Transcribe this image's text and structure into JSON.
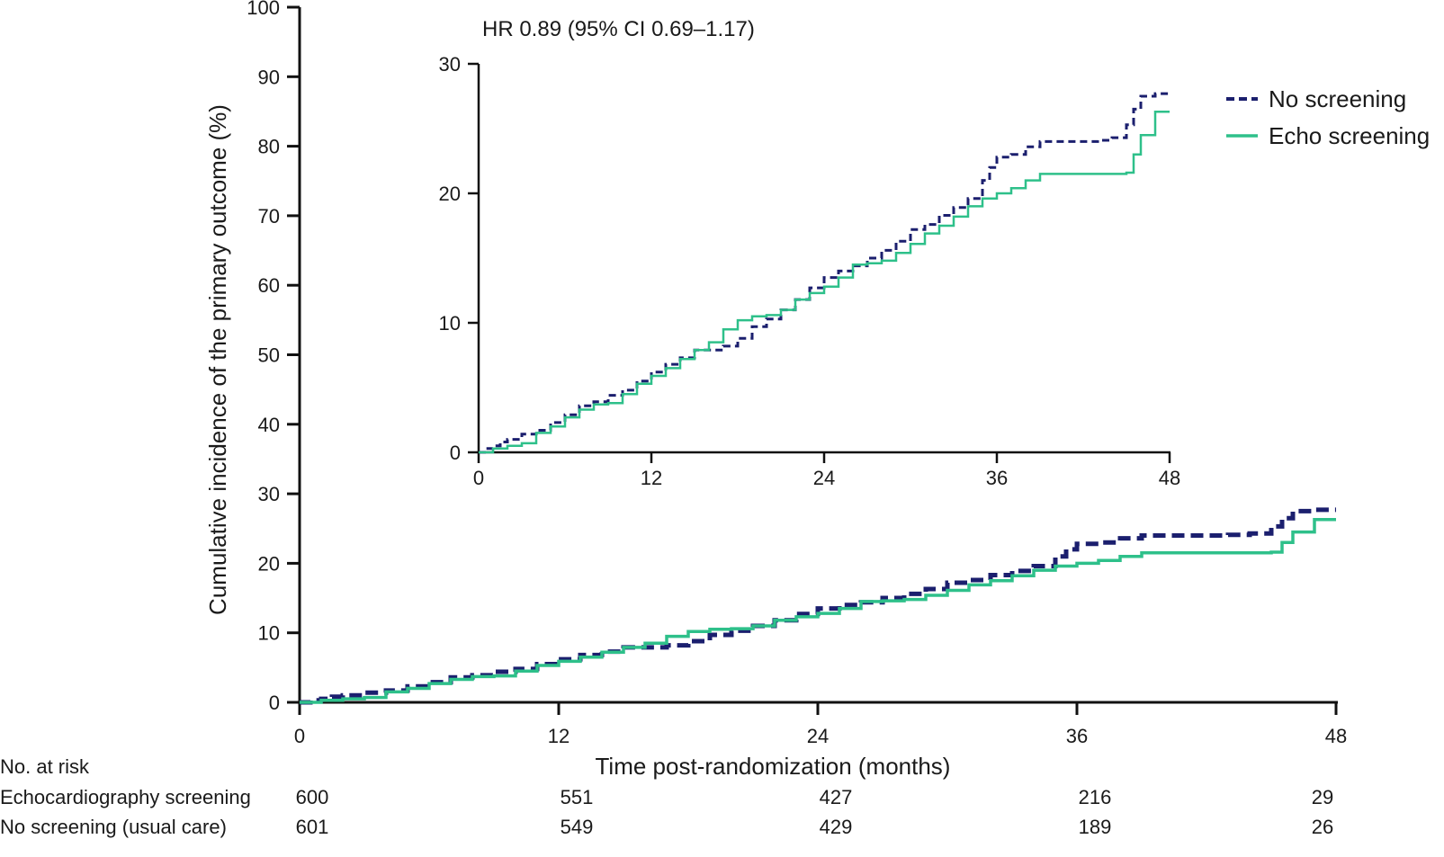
{
  "chart_data": {
    "type": "line",
    "title": "",
    "xlabel": "Time post-randomization (months)",
    "ylabel": "Cumulative incidence of the primary outcome (%)",
    "xlim": [
      0,
      48
    ],
    "ylim": [
      0,
      100
    ],
    "xticks": [
      0,
      12,
      24,
      36,
      48
    ],
    "yticks": [
      0,
      10,
      20,
      30,
      40,
      50,
      60,
      70,
      80,
      90,
      100
    ],
    "legend": {
      "placement": "top-right",
      "entries": [
        {
          "name": "No screening",
          "style": "dashed",
          "color": "#1b1f6e"
        },
        {
          "name": "Echo screening",
          "style": "solid",
          "color": "#2ec08a"
        }
      ]
    },
    "series": [
      {
        "name": "No screening",
        "color": "#1b1f6e",
        "style": "dashed",
        "x": [
          0,
          0.5,
          1,
          1.5,
          2,
          3,
          4,
          5,
          6,
          7,
          8,
          9,
          10,
          11,
          12,
          13,
          14,
          15,
          16,
          17,
          18,
          19,
          20,
          21,
          22,
          23,
          24,
          25,
          26,
          27,
          28,
          29,
          30,
          31,
          32,
          33,
          34,
          35,
          35.5,
          36,
          37,
          38,
          39,
          40,
          41,
          42,
          43,
          44,
          45,
          45.5,
          46,
          47,
          48
        ],
        "y": [
          0,
          0.3,
          0.5,
          0.8,
          1.0,
          1.4,
          1.7,
          2.3,
          2.9,
          3.6,
          3.9,
          4.4,
          4.8,
          5.5,
          6.2,
          6.8,
          7.3,
          7.9,
          7.9,
          8.2,
          8.8,
          9.7,
          10.3,
          11.0,
          11.8,
          12.7,
          13.5,
          14.0,
          14.4,
          15.0,
          15.6,
          16.3,
          17.2,
          17.6,
          18.3,
          18.9,
          19.6,
          21.0,
          22.0,
          22.8,
          23.0,
          23.6,
          24.0,
          24.0,
          24.0,
          24.0,
          24.1,
          24.3,
          25.3,
          26.5,
          27.5,
          27.7,
          27.7
        ]
      },
      {
        "name": "Echo screening",
        "color": "#2ec08a",
        "style": "solid",
        "x": [
          0,
          1,
          2,
          3,
          4,
          5,
          6,
          7,
          8,
          9,
          10,
          11,
          12,
          13,
          14,
          15,
          16,
          17,
          18,
          19,
          20,
          21,
          22,
          23,
          24,
          25,
          26,
          27,
          28,
          29,
          30,
          31,
          32,
          33,
          34,
          35,
          36,
          37,
          38,
          39,
          40,
          41,
          42,
          43,
          44,
          45,
          45.5,
          46,
          47,
          48
        ],
        "y": [
          0,
          0.3,
          0.5,
          0.7,
          1.5,
          2.0,
          2.7,
          3.3,
          3.7,
          3.8,
          4.5,
          5.3,
          5.9,
          6.5,
          7.2,
          7.9,
          8.5,
          9.5,
          10.2,
          10.5,
          10.6,
          11.0,
          11.8,
          12.3,
          12.8,
          13.5,
          14.5,
          14.6,
          14.8,
          15.4,
          16.1,
          16.9,
          17.5,
          18.2,
          19.0,
          19.6,
          20.0,
          20.4,
          21.0,
          21.5,
          21.5,
          21.5,
          21.5,
          21.5,
          21.5,
          21.6,
          23.0,
          24.5,
          26.3,
          26.3
        ]
      }
    ],
    "inset": {
      "annotation": "HR 0.89 (95% CI 0.69–1.17)",
      "xlim": [
        0,
        48
      ],
      "ylim": [
        0,
        30
      ],
      "xticks": [
        0,
        12,
        24,
        36,
        48
      ],
      "yticks": [
        0,
        10,
        20,
        30
      ]
    },
    "risk_table": {
      "heading": "No. at risk",
      "times": [
        0,
        12,
        24,
        36,
        48
      ],
      "rows": [
        {
          "label": "Echocardiography screening",
          "values": [
            "600",
            "551",
            "427",
            "216",
            "29"
          ]
        },
        {
          "label": "No screening (usual care)",
          "values": [
            "601",
            "549",
            "429",
            "189",
            "26"
          ]
        }
      ]
    }
  }
}
